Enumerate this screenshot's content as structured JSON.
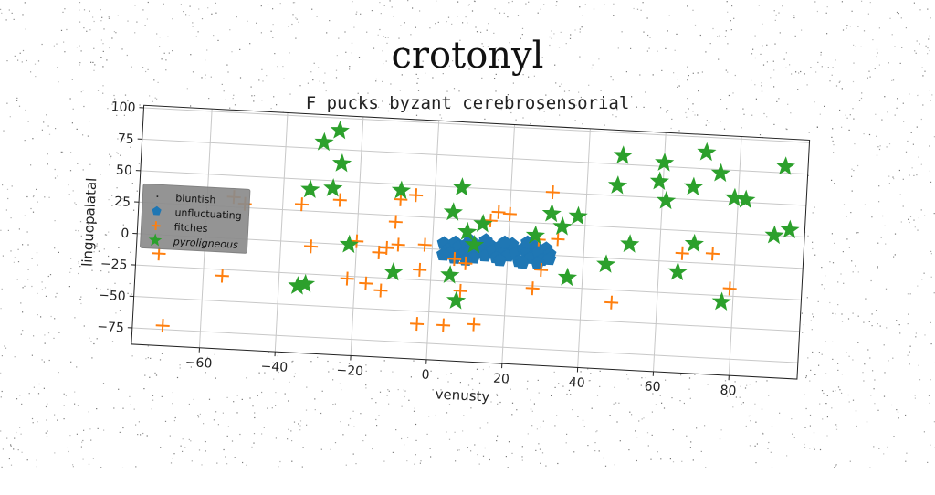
{
  "chart_data": {
    "type": "scatter",
    "title": "crotonyl",
    "subtitle": "F pucks byzant cerebrosensorial",
    "xlabel": "venusty",
    "ylabel": "linguopalatal",
    "xlim": [
      -78,
      98
    ],
    "ylim": [
      -88,
      102
    ],
    "xticks": [
      -60,
      -40,
      -20,
      0,
      20,
      40,
      60,
      80
    ],
    "yticks": [
      -75,
      -50,
      -25,
      0,
      25,
      50,
      75,
      100
    ],
    "xtick_labels": [
      "−60",
      "−40",
      "−20",
      "0",
      "20",
      "40",
      "60",
      "80"
    ],
    "ytick_labels": [
      "−75",
      "−50",
      "−25",
      "0",
      "25",
      "50",
      "75",
      "100"
    ],
    "grid": true,
    "legend_position": "center-left",
    "series": [
      {
        "name": "bluntish",
        "marker": "pixel",
        "color": "#1f1f1f",
        "points": []
      },
      {
        "name": "unfluctuating",
        "marker": "pentagon",
        "color": "#1f77b4",
        "points": [
          [
            3,
            5
          ],
          [
            4,
            0
          ],
          [
            5,
            -2
          ],
          [
            6,
            6
          ],
          [
            7,
            3
          ],
          [
            8,
            -3
          ],
          [
            9,
            5
          ],
          [
            10,
            0
          ],
          [
            11,
            -5
          ],
          [
            12,
            4
          ],
          [
            13,
            2
          ],
          [
            14,
            -3
          ],
          [
            15,
            6
          ],
          [
            16,
            1
          ],
          [
            17,
            -4
          ],
          [
            18,
            5
          ],
          [
            19,
            2
          ],
          [
            20,
            -2
          ],
          [
            21,
            7
          ],
          [
            22,
            0
          ],
          [
            23,
            -6
          ],
          [
            24,
            4
          ],
          [
            25,
            1
          ],
          [
            26,
            -3
          ],
          [
            27,
            6
          ],
          [
            28,
            2
          ],
          [
            29,
            -4
          ],
          [
            30,
            5
          ],
          [
            31,
            1
          ],
          [
            6,
            -6
          ],
          [
            10,
            8
          ],
          [
            14,
            9
          ],
          [
            19,
            8
          ],
          [
            24,
            -7
          ],
          [
            28,
            -7
          ],
          [
            18,
            -6
          ],
          [
            9,
            -7
          ],
          [
            25,
            9
          ],
          [
            31,
            -3
          ],
          [
            3,
            -4
          ]
        ]
      },
      {
        "name": "fitches",
        "marker": "plus",
        "color": "#ff7f0e",
        "points": [
          [
            -72,
            -15
          ],
          [
            -70,
            -72
          ],
          [
            -55,
            -30
          ],
          [
            -53,
            33
          ],
          [
            -50,
            28
          ],
          [
            -35,
            30
          ],
          [
            -32,
            -3
          ],
          [
            -25,
            35
          ],
          [
            -22,
            -27
          ],
          [
            -20,
            3
          ],
          [
            -17,
            -30
          ],
          [
            -14,
            -5
          ],
          [
            -13,
            -35
          ],
          [
            -12,
            -1
          ],
          [
            -10,
            20
          ],
          [
            -9,
            2
          ],
          [
            -9,
            38
          ],
          [
            -5,
            42
          ],
          [
            -3,
            -17
          ],
          [
            -2,
            3
          ],
          [
            -3,
            -60
          ],
          [
            4,
            -60
          ],
          [
            6,
            -7
          ],
          [
            8,
            -32
          ],
          [
            9,
            -10
          ],
          [
            12,
            -58
          ],
          [
            15,
            25
          ],
          [
            17,
            32
          ],
          [
            20,
            31
          ],
          [
            27,
            -27
          ],
          [
            28,
            12
          ],
          [
            29,
            -12
          ],
          [
            31,
            50
          ],
          [
            33,
            13
          ],
          [
            48,
            -35
          ],
          [
            66,
            7
          ],
          [
            74,
            8
          ],
          [
            79,
            -19
          ]
        ]
      },
      {
        "name": "pyroligneous",
        "marker": "star",
        "color": "#2ca02c",
        "points": [
          [
            -35,
            -35
          ],
          [
            -33,
            -33
          ],
          [
            -33,
            42
          ],
          [
            -30,
            80
          ],
          [
            -26,
            90
          ],
          [
            -25,
            64
          ],
          [
            -27,
            44
          ],
          [
            -22,
            0
          ],
          [
            -10,
            -20
          ],
          [
            -9,
            45
          ],
          [
            5,
            -20
          ],
          [
            5,
            30
          ],
          [
            7,
            50
          ],
          [
            7,
            -40
          ],
          [
            9,
            15
          ],
          [
            11,
            5
          ],
          [
            13,
            22
          ],
          [
            27,
            15
          ],
          [
            31,
            33
          ],
          [
            34,
            23
          ],
          [
            36,
            -17
          ],
          [
            38,
            32
          ],
          [
            46,
            -5
          ],
          [
            48,
            58
          ],
          [
            49,
            82
          ],
          [
            52,
            12
          ],
          [
            59,
            63
          ],
          [
            60,
            78
          ],
          [
            61,
            48
          ],
          [
            65,
            -8
          ],
          [
            68,
            60
          ],
          [
            69,
            15
          ],
          [
            71,
            88
          ],
          [
            75,
            72
          ],
          [
            77,
            -30
          ],
          [
            79,
            53
          ],
          [
            82,
            52
          ],
          [
            90,
            25
          ],
          [
            92,
            80
          ],
          [
            94,
            30
          ]
        ]
      }
    ]
  }
}
